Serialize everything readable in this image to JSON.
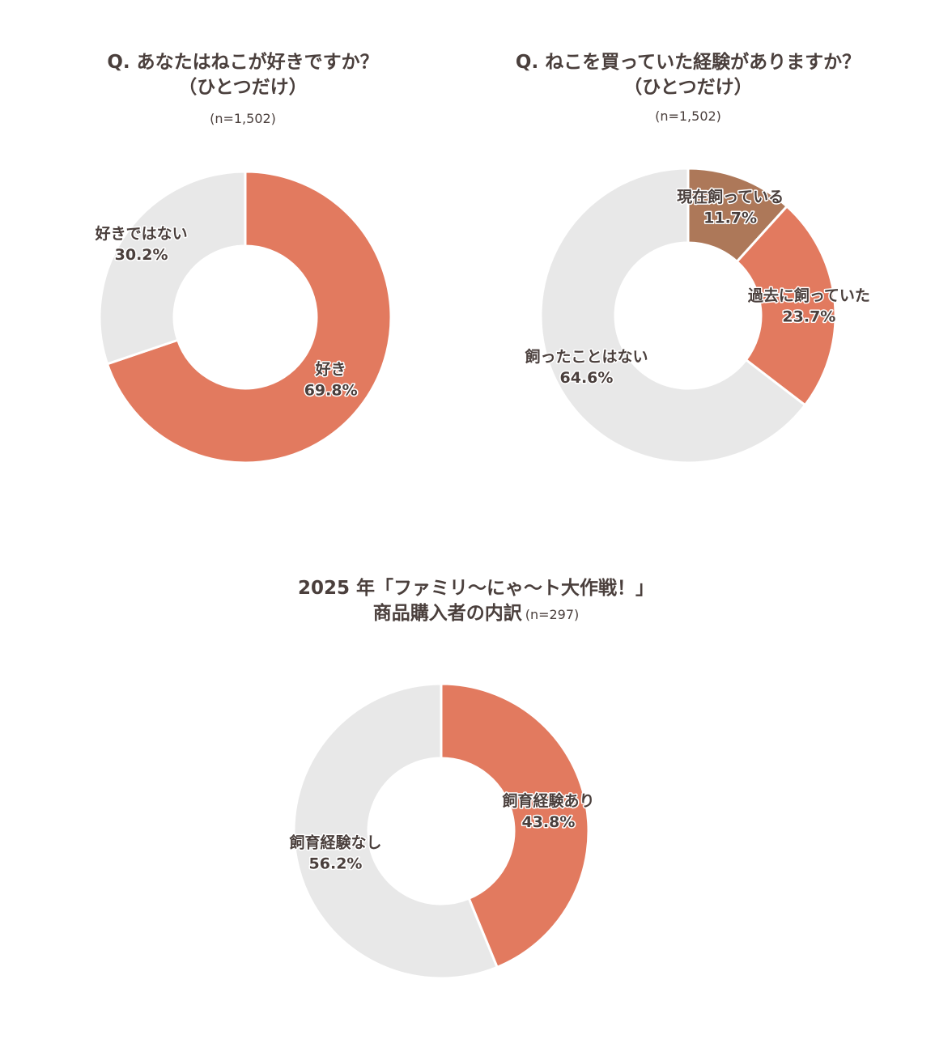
{
  "chart_data": [
    {
      "type": "pie",
      "title_lines": [
        "Q. あなたはねこが好きですか？",
        "（ひとつだけ）"
      ],
      "n": "(n=1,502)",
      "slices": [
        {
          "label": "好き",
          "value": 69.8,
          "value_label": "69.8%",
          "color": "#e27a5f"
        },
        {
          "label": "好きではない",
          "value": 30.2,
          "value_label": "30.2%",
          "color": "#e8e8e8"
        }
      ]
    },
    {
      "type": "pie",
      "title_lines": [
        "Q. ねこを買っていた経験がありますか？",
        "（ひとつだけ）"
      ],
      "n": "(n=1,502)",
      "slices": [
        {
          "label": "現在飼っている",
          "value": 11.7,
          "value_label": "11.7%",
          "color": "#ad7859"
        },
        {
          "label": "過去に飼っていた",
          "value": 23.7,
          "value_label": "23.7%",
          "color": "#e27a5f"
        },
        {
          "label": "飼ったことはない",
          "value": 64.6,
          "value_label": "64.6%",
          "color": "#e8e8e8"
        }
      ]
    },
    {
      "type": "pie",
      "title_lines": [
        "2025 年「ファミリ〜にゃ〜ト大作戦！」",
        "商品購入者の内訳"
      ],
      "n": "(n=297)",
      "slices": [
        {
          "label": "飼育経験あり",
          "value": 43.8,
          "value_label": "43.8%",
          "color": "#e27a5f"
        },
        {
          "label": "飼育経験なし",
          "value": 56.2,
          "value_label": "56.2%",
          "color": "#e8e8e8"
        }
      ]
    }
  ]
}
